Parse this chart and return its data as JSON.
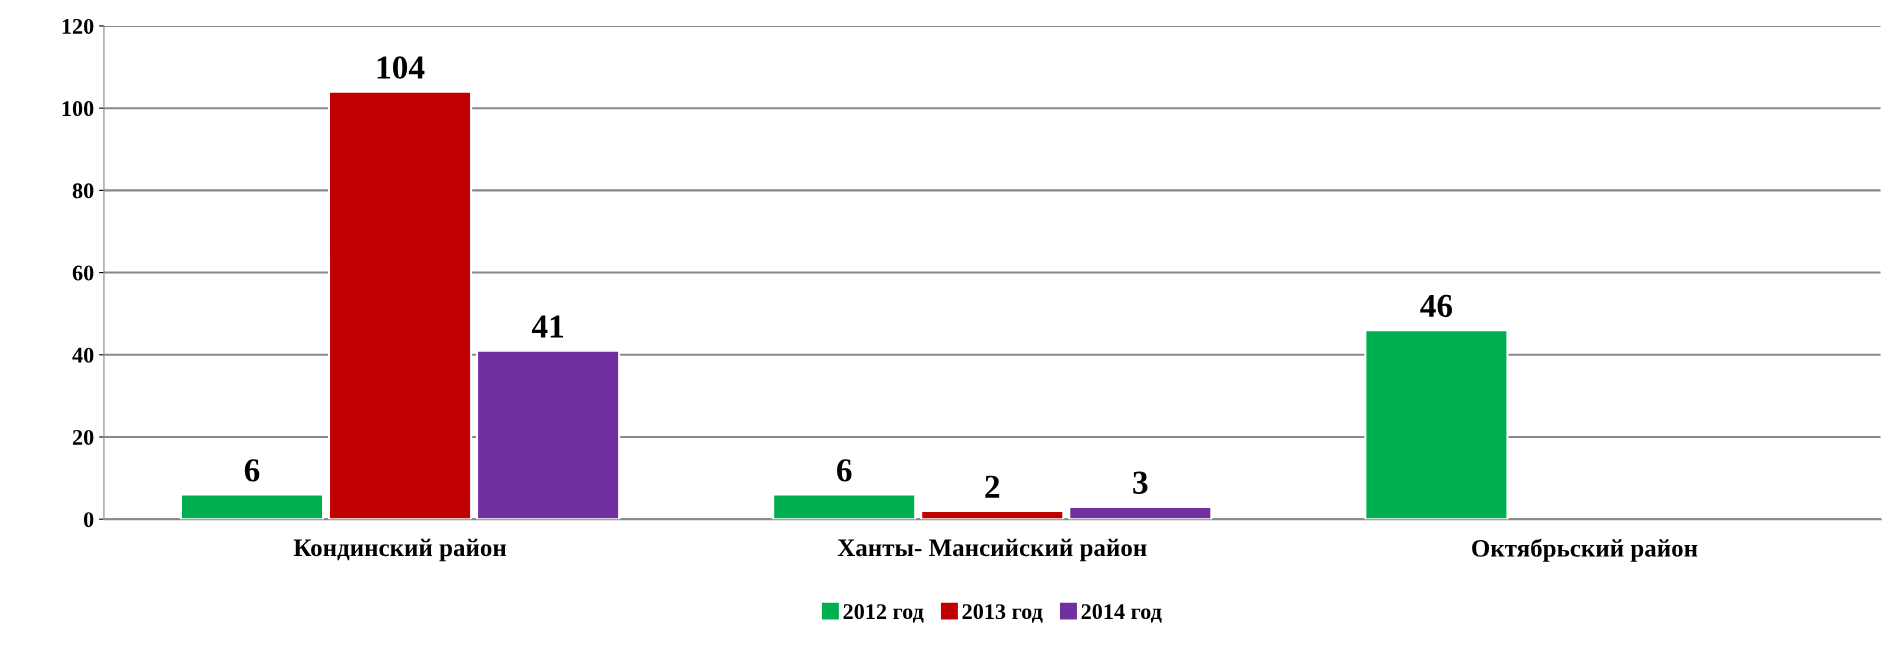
{
  "chart_data": {
    "type": "bar",
    "categories": [
      "Кондинский район",
      "Ханты- Мансийский район",
      "Октябрьский район"
    ],
    "series": [
      {
        "name": "2012 год",
        "color": "#00b050",
        "values": [
          6,
          6,
          46
        ]
      },
      {
        "name": "2013 год",
        "color": "#c00000",
        "values": [
          104,
          2,
          null
        ]
      },
      {
        "name": "2014 год",
        "color": "#7030a0",
        "values": [
          41,
          3,
          null
        ]
      }
    ],
    "ylim": [
      0,
      120
    ],
    "yticks": [
      0,
      20,
      40,
      60,
      80,
      100,
      120
    ],
    "grid": "y",
    "legend": "bottom",
    "data_labels": true
  }
}
